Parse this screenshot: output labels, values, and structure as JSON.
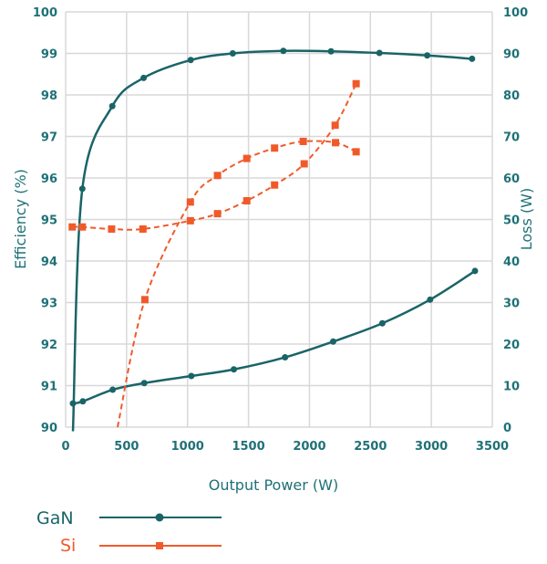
{
  "chart_data": {
    "type": "line",
    "title": "",
    "xlabel": "Output Power (W)",
    "ylabel_left": "Efficiency (%)",
    "ylabel_right": "Loss (W)",
    "xlim": [
      0,
      3500
    ],
    "ylim_left": [
      90,
      100
    ],
    "ylim_right": [
      0,
      100
    ],
    "x_ticks": [
      "0",
      "500",
      "1000",
      "1500",
      "2000",
      "2500",
      "3000",
      "3500"
    ],
    "y_ticks_left": [
      "90",
      "91",
      "92",
      "93",
      "94",
      "95",
      "96",
      "97",
      "98",
      "99",
      "100"
    ],
    "y_ticks_right": [
      "0",
      "10",
      "20",
      "30",
      "40",
      "50",
      "60",
      "70",
      "80",
      "90",
      "100"
    ],
    "grid": true,
    "legend_placement": "bottom-left",
    "colors": {
      "GaN": "#1a6468",
      "Si": "#f05a2a",
      "axis_text": "#1f7177",
      "grid": "#d8d8d8"
    },
    "legend": [
      {
        "name": "GaN",
        "marker": "circle",
        "style": "solid"
      },
      {
        "name": "Si",
        "marker": "square",
        "style": "dashed"
      }
    ],
    "series": [
      {
        "name": "GaN",
        "metric": "efficiency",
        "axis": "left",
        "start": [
          60,
          89.9
        ],
        "x": [
          137,
          383,
          640,
          1026,
          1371,
          1786,
          2177,
          2574,
          2966,
          3334
        ],
        "y": [
          95.74,
          97.73,
          98.41,
          98.84,
          99.0,
          99.06,
          99.05,
          99.01,
          98.95,
          98.87
        ]
      },
      {
        "name": "GaN",
        "metric": "loss",
        "axis": "right",
        "x": [
          60,
          141,
          386,
          645,
          1031,
          1380,
          1800,
          2195,
          2598,
          2990,
          3358
        ],
        "y": [
          5.7,
          6.2,
          9.0,
          10.6,
          12.3,
          13.9,
          16.8,
          20.6,
          25.0,
          30.7,
          37.6
        ]
      },
      {
        "name": "Si",
        "metric": "efficiency",
        "axis": "left",
        "start": [
          426,
          90.0
        ],
        "x": [
          650,
          1023,
          1246,
          1486,
          1714,
          1949,
          2214,
          2383
        ],
        "y": [
          93.07,
          95.42,
          96.06,
          96.47,
          96.72,
          96.88,
          96.85,
          96.63
        ]
      },
      {
        "name": "Si",
        "metric": "loss",
        "axis": "right",
        "x": [
          54,
          137,
          377,
          634,
          1023,
          1246,
          1486,
          1714,
          1957,
          2211,
          2383
        ],
        "y": [
          48.2,
          48.2,
          47.7,
          47.7,
          49.7,
          51.4,
          54.5,
          58.3,
          63.4,
          72.7,
          82.7
        ]
      }
    ]
  }
}
